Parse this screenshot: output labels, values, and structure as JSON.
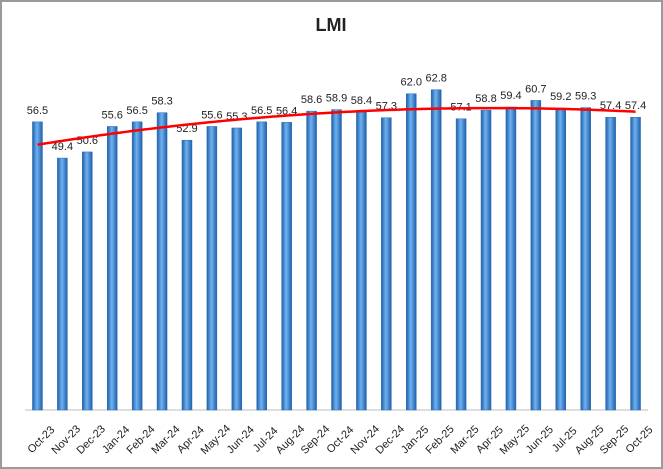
{
  "chart_data": {
    "type": "bar",
    "title": "LMI",
    "categories": [
      "Oct-23",
      "Nov-23",
      "Dec-23",
      "Jan-24",
      "Feb-24",
      "Mar-24",
      "Apr-24",
      "May-24",
      "Jun-24",
      "Jul-24",
      "Aug-24",
      "Sep-24",
      "Oct-24",
      "Nov-24",
      "Dec-24",
      "Jan-25",
      "Feb-25",
      "Mar-25",
      "Apr-25",
      "May-25",
      "Jun-25",
      "Jul-25",
      "Aug-25",
      "Sep-25",
      "Oct-25"
    ],
    "values": [
      56.5,
      49.4,
      50.6,
      55.6,
      56.5,
      58.3,
      52.9,
      55.6,
      55.3,
      56.5,
      56.4,
      58.6,
      58.9,
      58.4,
      57.3,
      62.0,
      62.8,
      57.1,
      58.8,
      59.4,
      60.7,
      59.2,
      59.3,
      57.4,
      57.4
    ],
    "value_labels": [
      "56.5",
      "49.4",
      "50.6",
      "55.6",
      "56.5",
      "58.3",
      "52.9",
      "55.6",
      "55.3",
      "56.5",
      "56.4",
      "58.6",
      "58.9",
      "58.4",
      "57.3",
      "62.0",
      "62.8",
      "57.1",
      "58.8",
      "59.4",
      "60.7",
      "59.2",
      "59.3",
      "57.4",
      "57.4"
    ],
    "color": "#3b8bd6",
    "ylim": [
      0,
      70
    ],
    "trendline": {
      "type": "polynomial",
      "order": 2,
      "color": "#ff0000"
    }
  }
}
